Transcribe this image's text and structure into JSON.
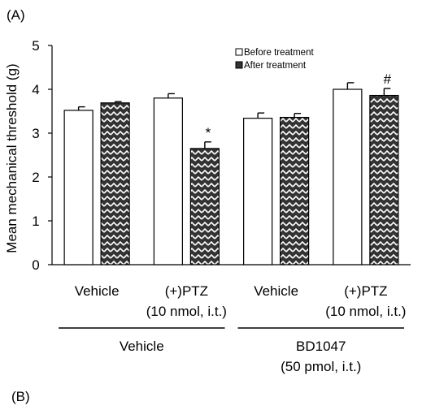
{
  "panel_top_label": "(A)",
  "panel_bottom_label": "(B)",
  "chart_data": {
    "type": "bar",
    "title": "",
    "ylabel": "Mean mechanical threshold (g)",
    "ylim": [
      0,
      5
    ],
    "yticks": [
      0,
      1,
      2,
      3,
      4,
      5
    ],
    "grid": false,
    "legend_position": "top-right",
    "categories": [
      {
        "line1": "Vehicle",
        "line2": ""
      },
      {
        "line1": "(+)PTZ",
        "line2": "(10 nmol, i.t.)"
      },
      {
        "line1": "Vehicle",
        "line2": ""
      },
      {
        "line1": "(+)PTZ",
        "line2": "(10 nmol, i.t.)"
      }
    ],
    "groups": [
      {
        "line1": "Vehicle",
        "line2": "",
        "span": [
          0,
          1
        ]
      },
      {
        "line1": "BD1047",
        "line2": "(50 pmol, i.t.)",
        "span": [
          2,
          3
        ]
      }
    ],
    "series": [
      {
        "name": "Before treatment",
        "values": [
          3.52,
          3.8,
          3.34,
          4.0
        ],
        "errors": [
          0.08,
          0.1,
          0.12,
          0.15
        ],
        "fill": "#ffffff"
      },
      {
        "name": "After treatment",
        "values": [
          3.69,
          2.65,
          3.36,
          3.86
        ],
        "errors": [
          0.03,
          0.15,
          0.09,
          0.16
        ],
        "fill": "#333333"
      }
    ],
    "annotations": [
      {
        "category": 1,
        "series": 1,
        "text": "*"
      },
      {
        "category": 3,
        "series": 1,
        "text": "#"
      }
    ]
  }
}
